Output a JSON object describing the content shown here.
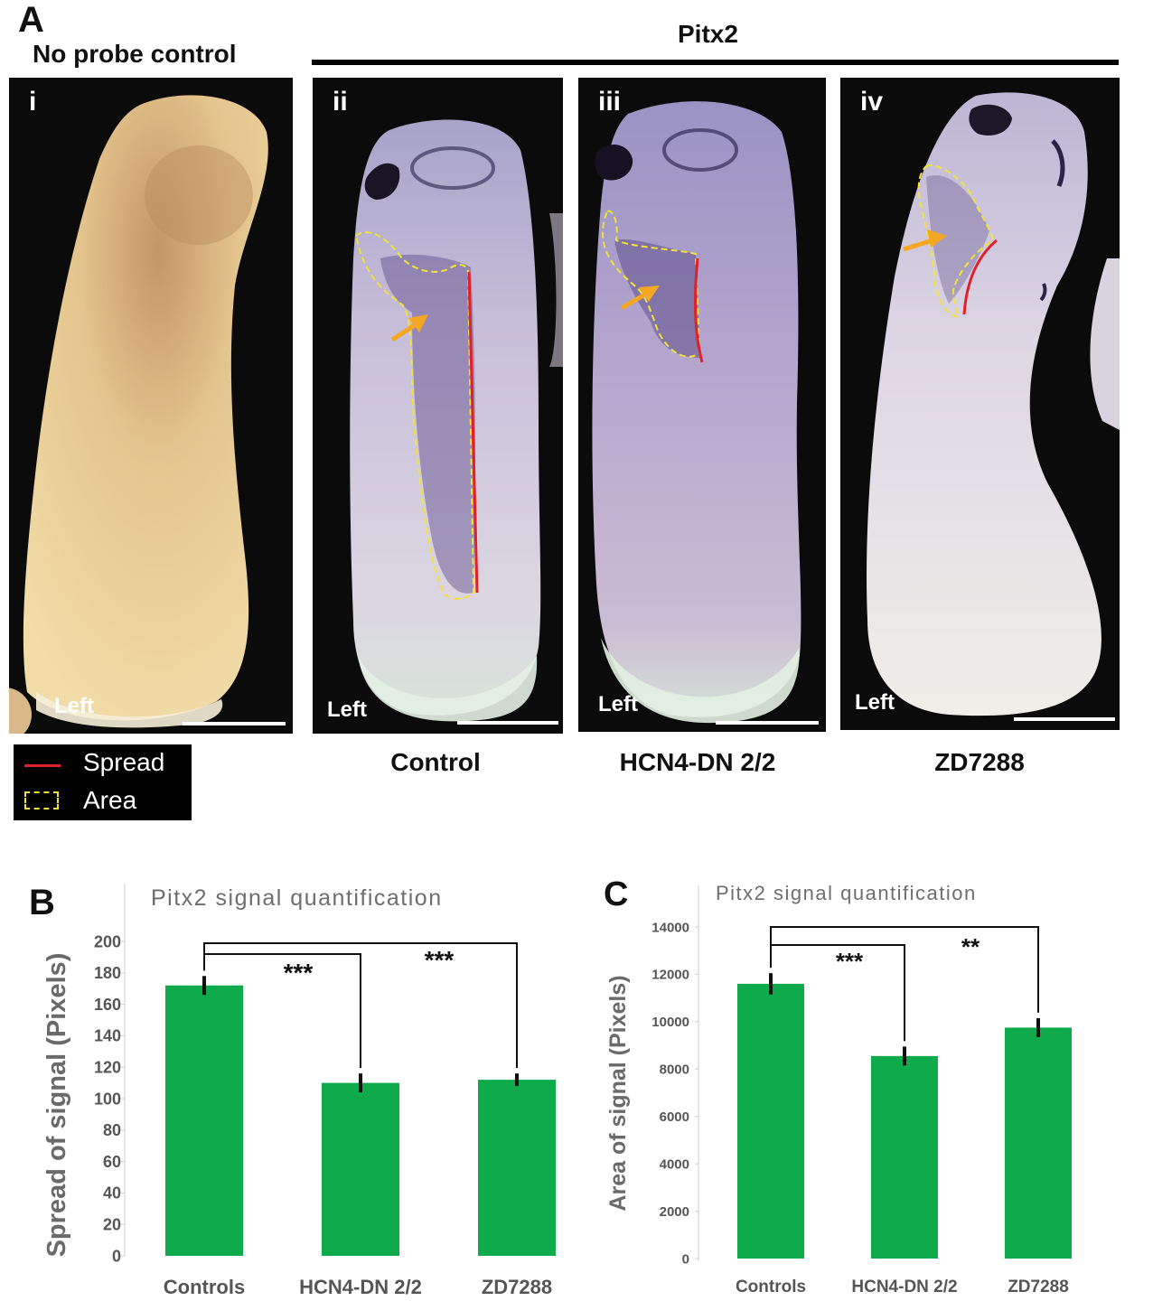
{
  "panel_a": {
    "letter": "A",
    "no_probe_title": "No probe control",
    "group_title": "Pitx2",
    "images": [
      {
        "roman": "i",
        "side": "Left"
      },
      {
        "roman": "ii",
        "side": "Left",
        "condition": "Control"
      },
      {
        "roman": "iii",
        "side": "Left",
        "condition": "HCN4-DN 2/2"
      },
      {
        "roman": "iv",
        "side": "Left",
        "condition": "ZD7288"
      }
    ],
    "legend": {
      "spread": "Spread",
      "area": "Area"
    },
    "colors": {
      "spread_line": "#e0202a",
      "area_outline": "#f2e33a",
      "arrow": "#f5a623"
    }
  },
  "chart_data": [
    {
      "panel": "B",
      "type": "bar",
      "title": "Pitx2 signal quantification",
      "ylabel": "Spread of signal (Pixels)",
      "xlabel": "",
      "categories": [
        "Controls",
        "HCN4-DN 2/2",
        "ZD7288"
      ],
      "values": [
        172,
        110,
        112
      ],
      "errors": [
        6,
        6,
        4
      ],
      "ylim": [
        0,
        200
      ],
      "yticks": [
        "0",
        "20",
        "40",
        "60",
        "80",
        "100",
        "120",
        "140",
        "160",
        "180",
        "200"
      ],
      "bar_color": "#0faa4b",
      "significance": [
        {
          "from": "Controls",
          "to": "HCN4-DN 2/2",
          "label": "***"
        },
        {
          "from": "Controls",
          "to": "ZD7288",
          "label": "***"
        }
      ]
    },
    {
      "panel": "C",
      "type": "bar",
      "title": "Pitx2 signal quantification",
      "ylabel": "Area of signal (Pixels)",
      "xlabel": "",
      "categories": [
        "Controls",
        "HCN4-DN 2/2",
        "ZD7288"
      ],
      "values": [
        11600,
        8550,
        9750
      ],
      "errors": [
        450,
        400,
        400
      ],
      "ylim": [
        0,
        14000
      ],
      "yticks": [
        "0",
        "2000",
        "4000",
        "6000",
        "8000",
        "10000",
        "12000",
        "14000"
      ],
      "bar_color": "#0faa4b",
      "significance": [
        {
          "from": "Controls",
          "to": "HCN4-DN 2/2",
          "label": "***"
        },
        {
          "from": "Controls",
          "to": "ZD7288",
          "label": "**"
        }
      ]
    }
  ]
}
